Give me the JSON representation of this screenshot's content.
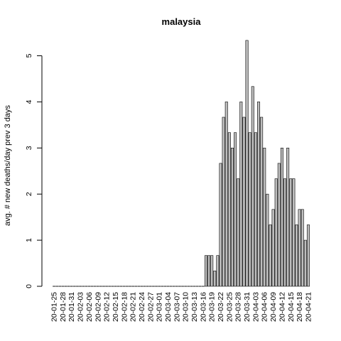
{
  "chart_data": {
    "type": "bar",
    "title": "malaysia",
    "xlabel": "",
    "ylabel": "avg. # new deaths/day prev  3  days",
    "ylim": [
      0,
      5.5
    ],
    "yticks": [
      0,
      1,
      2,
      3,
      4,
      5
    ],
    "grid": false,
    "legend": "none",
    "bar_fill": "#bebebe",
    "bar_stroke": "#000000",
    "x_tick_labels": [
      "20-01-25",
      "20-01-28",
      "20-01-31",
      "20-02-03",
      "20-02-06",
      "20-02-09",
      "20-02-12",
      "20-02-15",
      "20-02-18",
      "20-02-21",
      "20-02-24",
      "20-02-27",
      "20-03-01",
      "20-03-04",
      "20-03-07",
      "20-03-10",
      "20-03-13",
      "20-03-16",
      "20-03-19",
      "20-03-22",
      "20-03-25",
      "20-03-28",
      "20-03-31",
      "20-04-03",
      "20-04-06",
      "20-04-09",
      "20-04-12",
      "20-04-15",
      "20-04-18",
      "20-04-21"
    ],
    "categories": [
      "20-01-25",
      "20-01-26",
      "20-01-27",
      "20-01-28",
      "20-01-29",
      "20-01-30",
      "20-01-31",
      "20-02-01",
      "20-02-02",
      "20-02-03",
      "20-02-04",
      "20-02-05",
      "20-02-06",
      "20-02-07",
      "20-02-08",
      "20-02-09",
      "20-02-10",
      "20-02-11",
      "20-02-12",
      "20-02-13",
      "20-02-14",
      "20-02-15",
      "20-02-16",
      "20-02-17",
      "20-02-18",
      "20-02-19",
      "20-02-20",
      "20-02-21",
      "20-02-22",
      "20-02-23",
      "20-02-24",
      "20-02-25",
      "20-02-26",
      "20-02-27",
      "20-02-28",
      "20-02-29",
      "20-03-01",
      "20-03-02",
      "20-03-03",
      "20-03-04",
      "20-03-05",
      "20-03-06",
      "20-03-07",
      "20-03-08",
      "20-03-09",
      "20-03-10",
      "20-03-11",
      "20-03-12",
      "20-03-13",
      "20-03-14",
      "20-03-15",
      "20-03-16",
      "20-03-17",
      "20-03-18",
      "20-03-19",
      "20-03-20",
      "20-03-21",
      "20-03-22",
      "20-03-23",
      "20-03-24",
      "20-03-25",
      "20-03-26",
      "20-03-27",
      "20-03-28",
      "20-03-29",
      "20-03-30",
      "20-03-31",
      "20-04-01",
      "20-04-02",
      "20-04-03",
      "20-04-04",
      "20-04-05",
      "20-04-06",
      "20-04-07",
      "20-04-08",
      "20-04-09",
      "20-04-10",
      "20-04-11",
      "20-04-12",
      "20-04-13",
      "20-04-14",
      "20-04-15",
      "20-04-16",
      "20-04-17",
      "20-04-18",
      "20-04-19",
      "20-04-20",
      "20-04-21"
    ],
    "values": [
      0,
      0,
      0,
      0,
      0,
      0,
      0,
      0,
      0,
      0,
      0,
      0,
      0,
      0,
      0,
      0,
      0,
      0,
      0,
      0,
      0,
      0,
      0,
      0,
      0,
      0,
      0,
      0,
      0,
      0,
      0,
      0,
      0,
      0,
      0,
      0,
      0,
      0,
      0,
      0,
      0,
      0,
      0,
      0,
      0,
      0,
      0,
      0,
      0,
      0,
      0,
      0,
      0.667,
      0.667,
      0.667,
      0.333,
      0.667,
      2.667,
      3.667,
      4.0,
      3.333,
      3.0,
      3.333,
      2.333,
      4.0,
      3.667,
      5.333,
      3.333,
      4.333,
      3.333,
      4.0,
      3.667,
      3.0,
      2.0,
      1.333,
      1.667,
      2.333,
      2.667,
      3.0,
      2.333,
      3.0,
      2.333,
      2.333,
      1.333,
      1.667,
      1.667,
      1.0,
      1.333
    ]
  }
}
